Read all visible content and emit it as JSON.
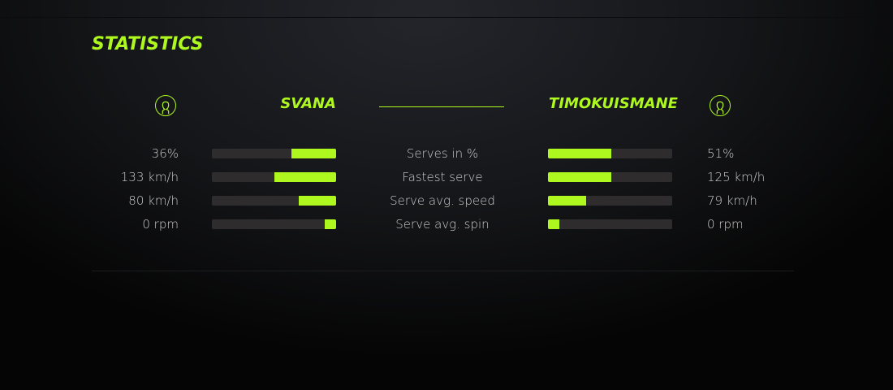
{
  "colors": {
    "accent": "#aef81f"
  },
  "title": "STATISTICS",
  "players": {
    "left": {
      "name": "SVANA",
      "icon": "user-icon"
    },
    "right": {
      "name": "TIMOKUISMANE",
      "icon": "user-icon"
    }
  },
  "stats": [
    {
      "label": "Serves in %",
      "left": "36%",
      "right": "51%",
      "left_fill": 0.36,
      "right_fill": 0.51
    },
    {
      "label": "Fastest serve",
      "left": "133 km/h",
      "right": "125 km/h",
      "left_fill": 0.5,
      "right_fill": 0.51
    },
    {
      "label": "Serve avg. speed",
      "left": "80 km/h",
      "right": "79 km/h",
      "left_fill": 0.3,
      "right_fill": 0.31
    },
    {
      "label": "Serve avg. spin",
      "left": "0 rpm",
      "right": "0 rpm",
      "left_fill": 0.09,
      "right_fill": 0.09
    }
  ]
}
